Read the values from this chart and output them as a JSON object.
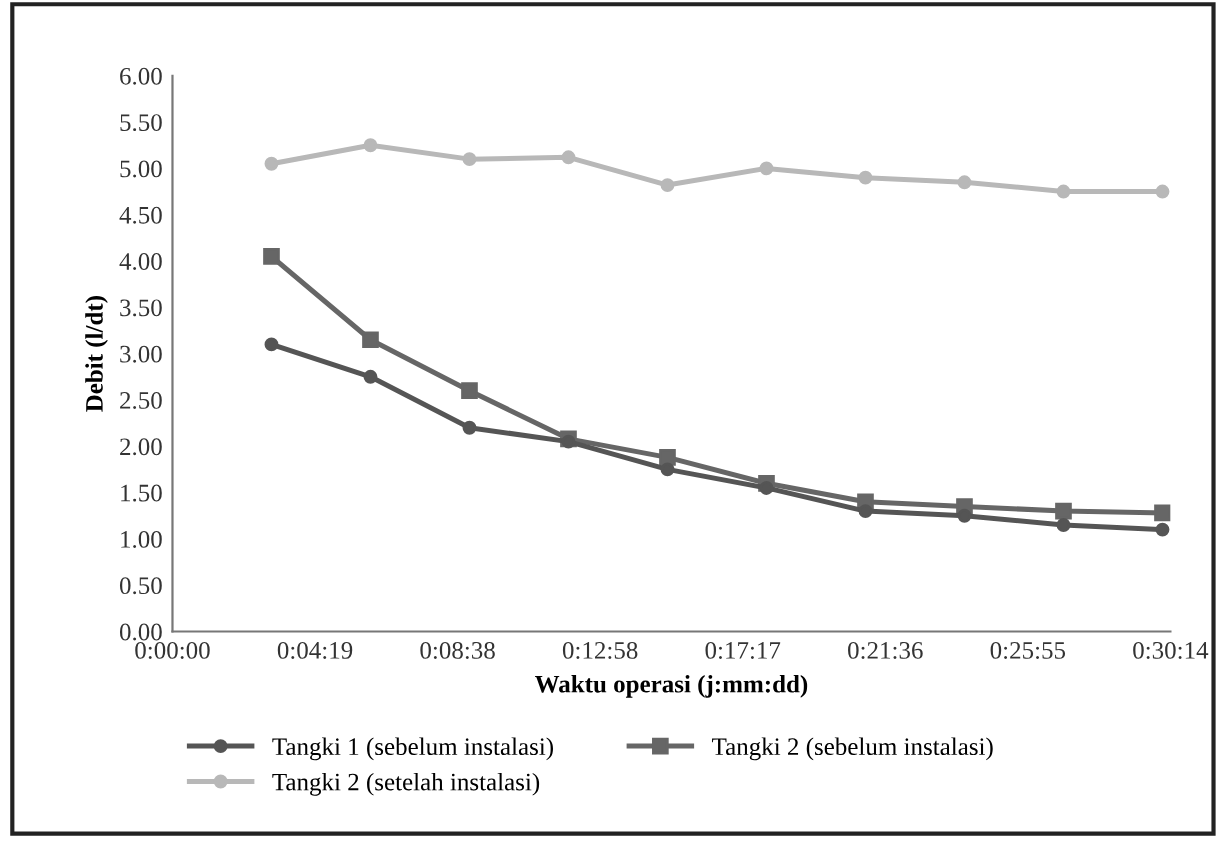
{
  "chart_data": {
    "type": "line",
    "xlabel": "Waktu operasi (j:mm:dd)",
    "ylabel": "Debit (l/dt)",
    "x": [
      0.05,
      0.1,
      0.15,
      0.2,
      0.25,
      0.3,
      0.35,
      0.4,
      0.45,
      0.5
    ],
    "series": [
      {
        "name": "Tangki 1 (sebelum instalasi)",
        "color": "#555555",
        "marker": "circle",
        "values": [
          3.1,
          2.75,
          2.2,
          2.05,
          1.75,
          1.55,
          1.3,
          1.25,
          1.15,
          1.1
        ]
      },
      {
        "name": "Tangki 2 (sebelum instalasi)",
        "color": "#666666",
        "marker": "square",
        "values": [
          4.05,
          3.15,
          2.6,
          2.08,
          1.88,
          1.6,
          1.4,
          1.35,
          1.3,
          1.28
        ]
      },
      {
        "name": "Tangki 2 (setelah instalasi)",
        "color": "#b8b8b8",
        "marker": "circle",
        "values": [
          5.05,
          5.25,
          5.1,
          5.12,
          4.82,
          5.0,
          4.9,
          4.85,
          4.75,
          4.75
        ]
      }
    ],
    "xlim": [
      0,
      0.504
    ],
    "xticks": [
      {
        "value": 0,
        "label": "0:00:00"
      },
      {
        "value": 0.072,
        "label": "0:04:19"
      },
      {
        "value": 0.144,
        "label": "0:08:38"
      },
      {
        "value": 0.216,
        "label": "0:12:58"
      },
      {
        "value": 0.288,
        "label": "0:17:17"
      },
      {
        "value": 0.36,
        "label": "0:21:36"
      },
      {
        "value": 0.432,
        "label": "0:25:55"
      },
      {
        "value": 0.504,
        "label": "0:30:14"
      }
    ],
    "ylim": [
      0,
      6
    ],
    "yticks": [
      {
        "value": 0,
        "label": "0.00"
      },
      {
        "value": 0.5,
        "label": "0.50"
      },
      {
        "value": 1,
        "label": "1.00"
      },
      {
        "value": 1.5,
        "label": "1.50"
      },
      {
        "value": 2,
        "label": "2.00"
      },
      {
        "value": 2.5,
        "label": "2.50"
      },
      {
        "value": 3,
        "label": "3.00"
      },
      {
        "value": 3.5,
        "label": "3.50"
      },
      {
        "value": 4,
        "label": "4.00"
      },
      {
        "value": 4.5,
        "label": "4.50"
      },
      {
        "value": 5,
        "label": "5.00"
      },
      {
        "value": 5.5,
        "label": "5.50"
      },
      {
        "value": 6,
        "label": "6.00"
      }
    ],
    "grid": false,
    "legend": "bottom",
    "line_style": "solid"
  }
}
